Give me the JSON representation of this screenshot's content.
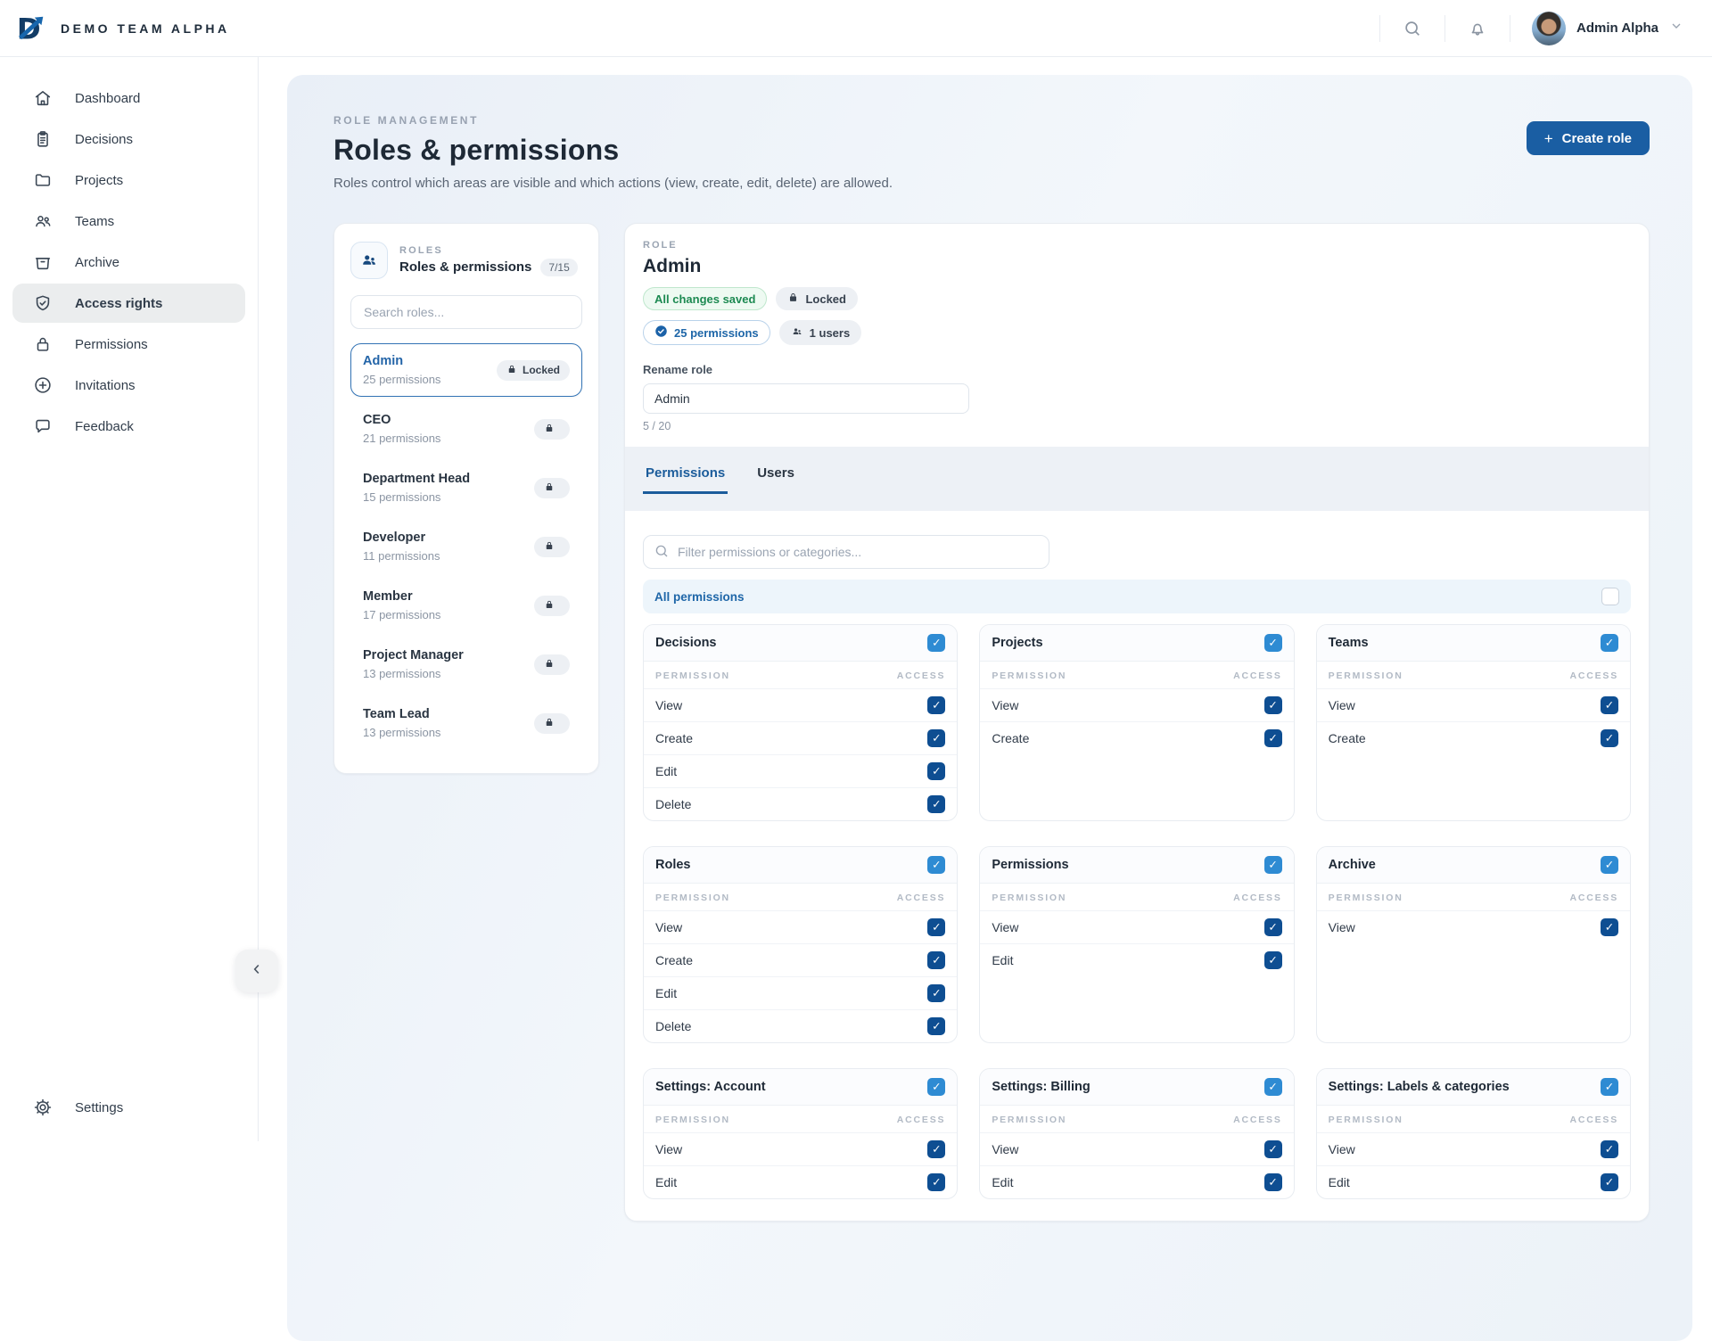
{
  "header": {
    "brand": "DEMO TEAM ALPHA",
    "user": {
      "name": "Admin Alpha"
    }
  },
  "sidebar": {
    "items": [
      {
        "label": "Dashboard",
        "icon": "home"
      },
      {
        "label": "Decisions",
        "icon": "clipboard"
      },
      {
        "label": "Projects",
        "icon": "folder"
      },
      {
        "label": "Teams",
        "icon": "team"
      },
      {
        "label": "Archive",
        "icon": "archive"
      },
      {
        "label": "Access rights",
        "icon": "shield",
        "active": true
      },
      {
        "label": "Permissions",
        "icon": "lock"
      },
      {
        "label": "Invitations",
        "icon": "plus-circle"
      },
      {
        "label": "Feedback",
        "icon": "chat"
      }
    ],
    "footer_item": {
      "label": "Settings",
      "icon": "gear"
    }
  },
  "page": {
    "eyebrow": "ROLE MANAGEMENT",
    "title": "Roles & permissions",
    "subtitle": "Roles control which areas are visible and which actions (view, create, edit, delete) are allowed.",
    "create_button": "Create role"
  },
  "roles_panel": {
    "eyebrow": "ROLES",
    "title": "Roles & permissions",
    "count_badge": "7/15",
    "search_placeholder": "Search roles...",
    "locked_badge": "Locked",
    "roles": [
      {
        "name": "Admin",
        "meta": "25 permissions",
        "locked": true,
        "selected": true
      },
      {
        "name": "CEO",
        "meta": "21 permissions"
      },
      {
        "name": "Department Head",
        "meta": "15 permissions"
      },
      {
        "name": "Developer",
        "meta": "11 permissions"
      },
      {
        "name": "Member",
        "meta": "17 permissions"
      },
      {
        "name": "Project Manager",
        "meta": "13 permissions"
      },
      {
        "name": "Team Lead",
        "meta": "13 permissions"
      }
    ]
  },
  "role_detail": {
    "eyebrow": "ROLE",
    "name": "Admin",
    "badges": {
      "saved": "All changes saved",
      "locked": "Locked",
      "permissions": "25 permissions",
      "users": "1 users"
    },
    "rename": {
      "label": "Rename role",
      "value": "Admin",
      "counter": "5 / 20"
    },
    "tabs": [
      {
        "label": "Permissions",
        "active": true
      },
      {
        "label": "Users"
      }
    ],
    "filter_placeholder": "Filter permissions or categories...",
    "all_permissions": {
      "label": "All permissions",
      "checked": false
    },
    "columns": {
      "permission": "PERMISSION",
      "access": "ACCESS"
    },
    "groups": [
      {
        "title": "Decisions",
        "checked": true,
        "rows": [
          {
            "label": "View",
            "checked": true
          },
          {
            "label": "Create",
            "checked": true
          },
          {
            "label": "Edit",
            "checked": true
          },
          {
            "label": "Delete",
            "checked": true
          }
        ]
      },
      {
        "title": "Projects",
        "checked": true,
        "rows": [
          {
            "label": "View",
            "checked": true
          },
          {
            "label": "Create",
            "checked": true
          }
        ]
      },
      {
        "title": "Teams",
        "checked": true,
        "rows": [
          {
            "label": "View",
            "checked": true
          },
          {
            "label": "Create",
            "checked": true
          }
        ]
      },
      {
        "title": "Roles",
        "checked": true,
        "rows": [
          {
            "label": "View",
            "checked": true
          },
          {
            "label": "Create",
            "checked": true
          },
          {
            "label": "Edit",
            "checked": true
          },
          {
            "label": "Delete",
            "checked": true
          }
        ]
      },
      {
        "title": "Permissions",
        "checked": true,
        "rows": [
          {
            "label": "View",
            "checked": true
          },
          {
            "label": "Edit",
            "checked": true
          }
        ]
      },
      {
        "title": "Archive",
        "checked": true,
        "rows": [
          {
            "label": "View",
            "checked": true
          }
        ]
      },
      {
        "title": "Settings: Account",
        "checked": true,
        "rows": [
          {
            "label": "View",
            "checked": true
          },
          {
            "label": "Edit",
            "checked": true
          }
        ]
      },
      {
        "title": "Settings: Billing",
        "checked": true,
        "rows": [
          {
            "label": "View",
            "checked": true
          },
          {
            "label": "Edit",
            "checked": true
          }
        ]
      },
      {
        "title": "Settings: Labels & categories",
        "checked": true,
        "rows": [
          {
            "label": "View",
            "checked": true
          },
          {
            "label": "Edit",
            "checked": true
          }
        ]
      }
    ]
  },
  "colors": {
    "primary_button": "#1a5ea3",
    "checkbox_dark": "#0e4e92",
    "checkbox_light": "#2e8bd3",
    "saved_green": "#1d8a52",
    "active_tab": "#1b5c9b",
    "selected_role_border": "#3273b5"
  }
}
